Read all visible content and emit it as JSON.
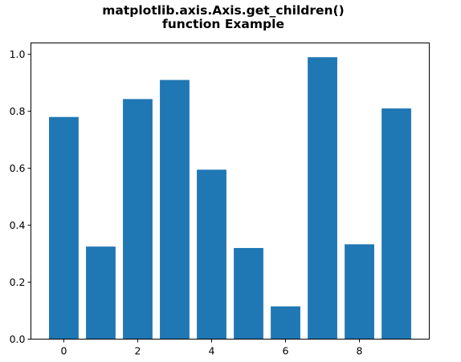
{
  "chart_data": {
    "type": "bar",
    "title_lines": [
      "matplotlib.axis.Axis.get_children()",
      "function Example"
    ],
    "xlabel": "",
    "ylabel": "",
    "categories": [
      0,
      1,
      2,
      3,
      4,
      5,
      6,
      7,
      8,
      9
    ],
    "values": [
      0.78,
      0.325,
      0.843,
      0.91,
      0.595,
      0.32,
      0.115,
      0.99,
      0.333,
      0.81
    ],
    "bar_width": 0.8,
    "bar_color": "#1f77b4",
    "xlim": [
      -0.89,
      9.89
    ],
    "ylim": [
      0,
      1.04
    ],
    "xticks": [
      0,
      2,
      4,
      6,
      8
    ],
    "xtick_labels": [
      "0",
      "2",
      "4",
      "6",
      "8"
    ],
    "yticks": [
      0.0,
      0.2,
      0.4,
      0.6,
      0.8,
      1.0
    ],
    "ytick_labels": [
      "0.0",
      "0.2",
      "0.4",
      "0.6",
      "0.8",
      "1.0"
    ],
    "grid": false,
    "legend": null
  }
}
